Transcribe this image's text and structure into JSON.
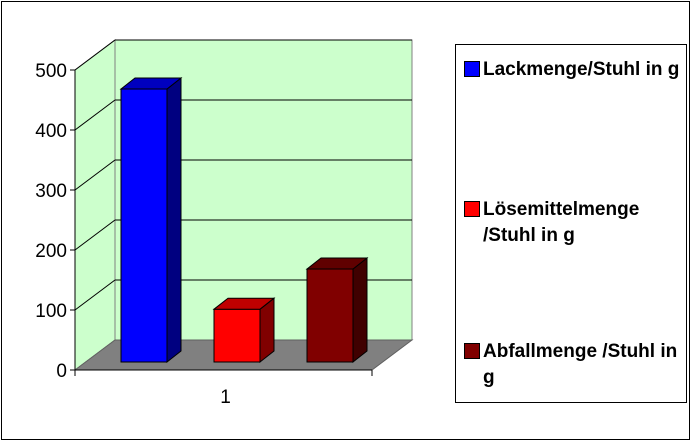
{
  "chart_data": {
    "type": "bar",
    "categories": [
      "1"
    ],
    "series": [
      {
        "name": "Lackmenge/Stuhl in g",
        "values": [
          455
        ],
        "color": "#0000ff"
      },
      {
        "name": "Lösemittelmenge /Stuhl in g",
        "values": [
          88
        ],
        "color": "#ff0000"
      },
      {
        "name": "Abfallmenge /Stuhl in g",
        "values": [
          155
        ],
        "color": "#800000"
      }
    ],
    "title": "",
    "xlabel": "",
    "ylabel": "",
    "ylim": [
      0,
      500
    ],
    "yticks": [
      0,
      100,
      200,
      300,
      400,
      500
    ],
    "grid": true,
    "legend": "right",
    "plot_background": "#ccffcc",
    "floor_color": "#808080"
  }
}
